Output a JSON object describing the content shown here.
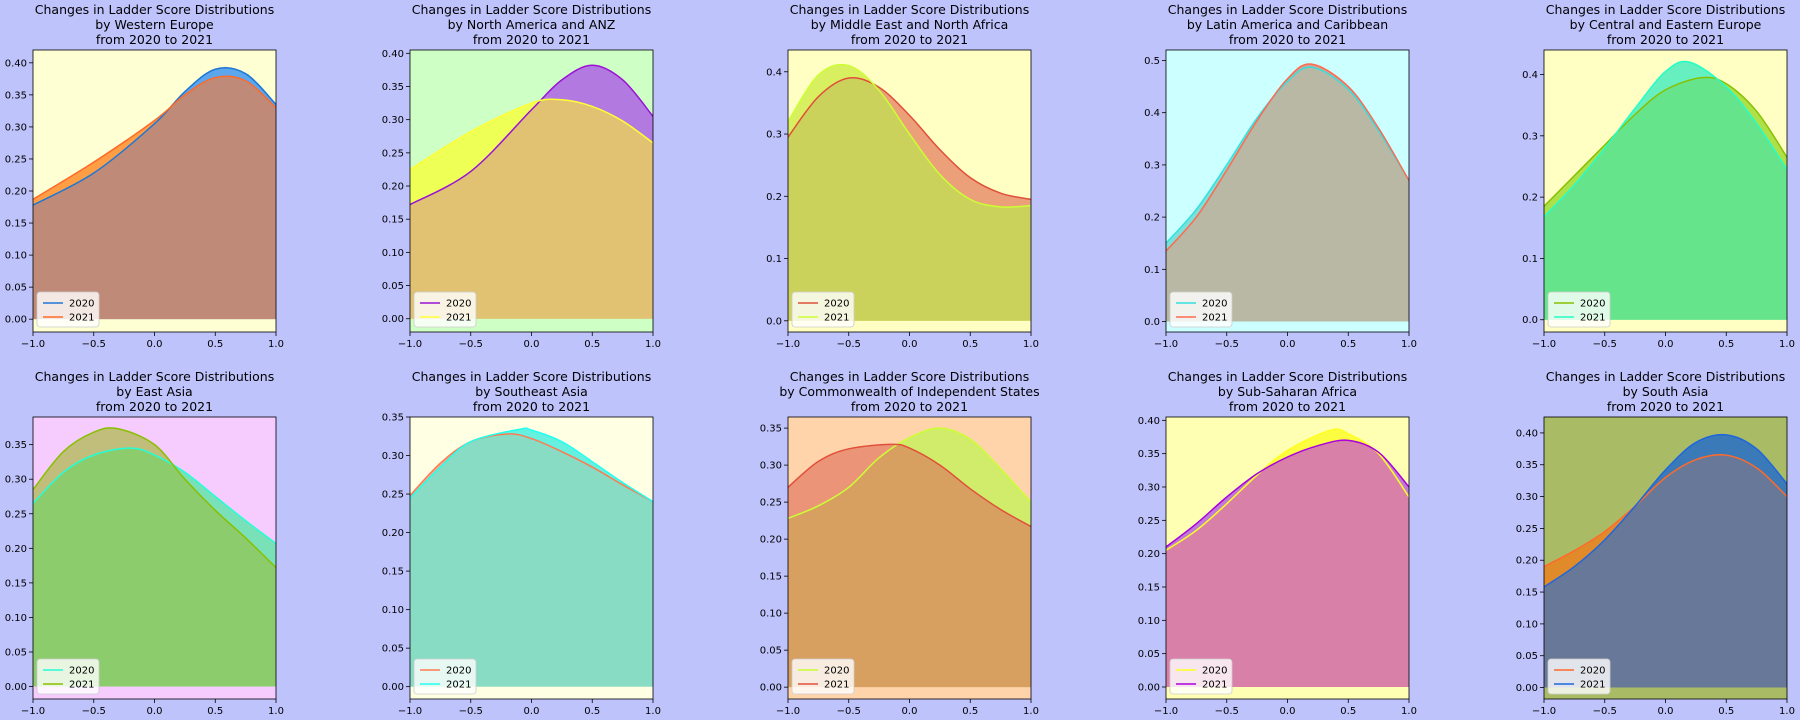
{
  "figure": {
    "background": "#bfc3fc"
  },
  "chart_data": [
    {
      "type": "area",
      "row": 0,
      "col": 0,
      "title": "Changes in Ladder Score Distributions\nby Western Europe\nfrom 2020 to 2021",
      "xlim": [
        -1,
        1
      ],
      "ylim": [
        -0.02,
        0.42
      ],
      "xticks": [
        "−1.0",
        "−0.5",
        "0.0",
        "0.5",
        "1.0"
      ],
      "yticks": [
        "0.00",
        "0.05",
        "0.10",
        "0.15",
        "0.20",
        "0.25",
        "0.30",
        "0.35",
        "0.40"
      ],
      "background": "#ffffd4",
      "legend_position": "lower-left",
      "series": [
        {
          "name": "2020",
          "color": "#1f77d4",
          "fill": "#5ba6ec",
          "x": [
            -1,
            -0.5,
            0,
            0.25,
            0.5,
            0.75,
            1
          ],
          "y": [
            0.178,
            0.228,
            0.305,
            0.355,
            0.39,
            0.383,
            0.335
          ]
        },
        {
          "name": "2021",
          "color": "#ff6a2a",
          "fill": "#ff9e45",
          "x": [
            -1,
            -0.5,
            0,
            0.25,
            0.5,
            0.75,
            1
          ],
          "y": [
            0.187,
            0.245,
            0.31,
            0.35,
            0.377,
            0.372,
            0.33
          ]
        }
      ],
      "overlap_fill": "#c08a78"
    },
    {
      "type": "area",
      "row": 0,
      "col": 1,
      "title": "Changes in Ladder Score Distributions\nby North America and ANZ\nfrom 2020 to 2021",
      "xlim": [
        -1,
        1
      ],
      "ylim": [
        -0.02,
        0.405
      ],
      "xticks": [
        "−1.0",
        "−0.5",
        "0.0",
        "0.5",
        "1.0"
      ],
      "yticks": [
        "0.00",
        "0.05",
        "0.10",
        "0.15",
        "0.20",
        "0.25",
        "0.30",
        "0.35",
        "0.40"
      ],
      "background": "#ceffc4",
      "legend_position": "lower-left",
      "series": [
        {
          "name": "2020",
          "color": "#9b12d6",
          "fill": "#b27ae0",
          "x": [
            -1,
            -0.5,
            0,
            0.25,
            0.5,
            0.75,
            1
          ],
          "y": [
            0.172,
            0.222,
            0.315,
            0.36,
            0.382,
            0.36,
            0.305
          ]
        },
        {
          "name": "2021",
          "color": "#ffff33",
          "fill": "#eeff55",
          "x": [
            -1,
            -0.5,
            0,
            0.25,
            0.5,
            0.75,
            1
          ],
          "y": [
            0.225,
            0.282,
            0.325,
            0.33,
            0.32,
            0.298,
            0.265
          ]
        }
      ],
      "overlap_fill": "#e0c272"
    },
    {
      "type": "area",
      "row": 0,
      "col": 2,
      "title": "Changes in Ladder Score Distributions\nby Middle East and North Africa\nfrom 2020 to 2021",
      "xlim": [
        -1,
        1
      ],
      "ylim": [
        -0.018,
        0.435
      ],
      "xticks": [
        "−1.0",
        "−0.5",
        "0.0",
        "0.5",
        "1.0"
      ],
      "yticks": [
        "0.0",
        "0.1",
        "0.2",
        "0.3",
        "0.4"
      ],
      "background": "#ffffc4",
      "legend_position": "lower-left",
      "series": [
        {
          "name": "2020",
          "color": "#e0503a",
          "fill": "#eba07a",
          "x": [
            -1,
            -0.75,
            -0.5,
            -0.25,
            0,
            0.25,
            0.5,
            0.75,
            1
          ],
          "y": [
            0.295,
            0.36,
            0.39,
            0.375,
            0.33,
            0.275,
            0.23,
            0.205,
            0.195
          ]
        },
        {
          "name": "2021",
          "color": "#ccff33",
          "fill": "#d8f060",
          "x": [
            -1,
            -0.75,
            -0.5,
            -0.25,
            0,
            0.25,
            0.5,
            0.75,
            1
          ],
          "y": [
            0.32,
            0.395,
            0.41,
            0.37,
            0.3,
            0.235,
            0.195,
            0.183,
            0.185
          ]
        }
      ],
      "overlap_fill": "#cbd25c"
    },
    {
      "type": "area",
      "row": 0,
      "col": 3,
      "title": "Changes in Ladder Score Distributions\nby Latin America and Caribbean\nfrom 2020 to 2021",
      "xlim": [
        -1,
        1
      ],
      "ylim": [
        -0.02,
        0.52
      ],
      "xticks": [
        "−1.0",
        "−0.5",
        "0.0",
        "0.5",
        "1.0"
      ],
      "yticks": [
        "0.0",
        "0.1",
        "0.2",
        "0.3",
        "0.4",
        "0.5"
      ],
      "background": "#ccffff",
      "legend_position": "lower-left",
      "series": [
        {
          "name": "2020",
          "color": "#33e0e0",
          "fill": "#7ae0d8",
          "x": [
            -1,
            -0.75,
            -0.5,
            -0.25,
            0,
            0.2,
            0.5,
            0.75,
            1
          ],
          "y": [
            0.15,
            0.215,
            0.3,
            0.39,
            0.46,
            0.487,
            0.445,
            0.365,
            0.27
          ]
        },
        {
          "name": "2021",
          "color": "#ff6a50",
          "fill": "#d8a090",
          "x": [
            -1,
            -0.75,
            -0.5,
            -0.25,
            0,
            0.2,
            0.5,
            0.75,
            1
          ],
          "y": [
            0.135,
            0.2,
            0.29,
            0.385,
            0.465,
            0.493,
            0.45,
            0.37,
            0.27
          ]
        }
      ],
      "overlap_fill": "#b8b8a4"
    },
    {
      "type": "area",
      "row": 0,
      "col": 4,
      "title": "Changes in Ladder Score Distributions\nby Central and Eastern Europe\nfrom 2020 to 2021",
      "xlim": [
        -1,
        1
      ],
      "ylim": [
        -0.02,
        0.44
      ],
      "xticks": [
        "−1.0",
        "−0.5",
        "0.0",
        "0.5",
        "1.0"
      ],
      "yticks": [
        "0.0",
        "0.1",
        "0.2",
        "0.3",
        "0.4"
      ],
      "background": "#ffffc4",
      "legend_position": "lower-left",
      "series": [
        {
          "name": "2020",
          "color": "#88c000",
          "fill": "#aee04a",
          "x": [
            -1,
            -0.75,
            -0.5,
            -0.25,
            0,
            0.3,
            0.5,
            0.75,
            1
          ],
          "y": [
            0.185,
            0.235,
            0.285,
            0.335,
            0.375,
            0.395,
            0.385,
            0.34,
            0.265
          ]
        },
        {
          "name": "2021",
          "color": "#22ffc8",
          "fill": "#66f0c0",
          "x": [
            -1,
            -0.75,
            -0.5,
            -0.25,
            0,
            0.2,
            0.5,
            0.75,
            1
          ],
          "y": [
            0.168,
            0.22,
            0.28,
            0.345,
            0.405,
            0.42,
            0.38,
            0.32,
            0.245
          ]
        }
      ],
      "overlap_fill": "#66e48c"
    },
    {
      "type": "area",
      "row": 1,
      "col": 0,
      "title": "Changes in Ladder Score Distributions\nby East Asia\nfrom 2020 to 2021",
      "xlim": [
        -1,
        1
      ],
      "ylim": [
        -0.018,
        0.39
      ],
      "xticks": [
        "−1.0",
        "−0.5",
        "0.0",
        "0.5",
        "1.0"
      ],
      "yticks": [
        "0.00",
        "0.05",
        "0.10",
        "0.15",
        "0.20",
        "0.25",
        "0.30",
        "0.35"
      ],
      "background": "#f6ccff",
      "legend_position": "lower-left",
      "series": [
        {
          "name": "2020",
          "color": "#22ffd8",
          "fill": "#7ae0b8",
          "x": [
            -1,
            -0.75,
            -0.5,
            -0.2,
            0,
            0.25,
            0.5,
            0.75,
            1
          ],
          "y": [
            0.265,
            0.31,
            0.335,
            0.345,
            0.335,
            0.31,
            0.275,
            0.24,
            0.207
          ]
        },
        {
          "name": "2021",
          "color": "#88c000",
          "fill": "#c0be7a",
          "x": [
            -1,
            -0.75,
            -0.5,
            -0.3,
            0,
            0.25,
            0.5,
            0.75,
            1
          ],
          "y": [
            0.285,
            0.34,
            0.368,
            0.373,
            0.35,
            0.3,
            0.255,
            0.215,
            0.172
          ]
        }
      ],
      "overlap_fill": "#8ccc6c"
    },
    {
      "type": "area",
      "row": 1,
      "col": 1,
      "title": "Changes in Ladder Score Distributions\nby Southeast Asia\nfrom 2020 to 2021",
      "xlim": [
        -1,
        1
      ],
      "ylim": [
        -0.016,
        0.35
      ],
      "xticks": [
        "−1.0",
        "−0.5",
        "0.0",
        "0.5",
        "1.0"
      ],
      "yticks": [
        "0.00",
        "0.05",
        "0.10",
        "0.15",
        "0.20",
        "0.25",
        "0.30",
        "0.35"
      ],
      "background": "#ffffe4",
      "legend_position": "lower-left",
      "series": [
        {
          "name": "2020",
          "color": "#ff7a50",
          "fill": "#f0b090",
          "x": [
            -1,
            -0.75,
            -0.5,
            -0.2,
            0,
            0.25,
            0.5,
            0.75,
            1
          ],
          "y": [
            0.248,
            0.29,
            0.318,
            0.328,
            0.322,
            0.305,
            0.285,
            0.262,
            0.24
          ]
        },
        {
          "name": "2021",
          "color": "#22ffee",
          "fill": "#66f0e0",
          "x": [
            -1,
            -0.75,
            -0.5,
            -0.1,
            0,
            0.25,
            0.5,
            0.75,
            1
          ],
          "y": [
            0.245,
            0.285,
            0.318,
            0.334,
            0.333,
            0.318,
            0.292,
            0.265,
            0.24
          ]
        }
      ],
      "overlap_fill": "#88dcc4"
    },
    {
      "type": "area",
      "row": 1,
      "col": 2,
      "title": "Changes in Ladder Score Distributions\nby Commonwealth of Independent States\nfrom 2020 to 2021",
      "xlim": [
        -1,
        1
      ],
      "ylim": [
        -0.016,
        0.365
      ],
      "xticks": [
        "−1.0",
        "−0.5",
        "0.0",
        "0.5",
        "1.0"
      ],
      "yticks": [
        "0.00",
        "0.05",
        "0.10",
        "0.15",
        "0.20",
        "0.25",
        "0.30",
        "0.35"
      ],
      "background": "#ffd4aa",
      "legend_position": "lower-left",
      "series": [
        {
          "name": "2020",
          "color": "#ccff33",
          "fill": "#d0ec6a",
          "x": [
            -1,
            -0.75,
            -0.5,
            -0.25,
            0,
            0.25,
            0.5,
            0.75,
            1
          ],
          "y": [
            0.228,
            0.245,
            0.27,
            0.31,
            0.337,
            0.35,
            0.335,
            0.295,
            0.25
          ]
        },
        {
          "name": "2021",
          "color": "#e0503a",
          "fill": "#eb9478",
          "x": [
            -1,
            -0.75,
            -0.5,
            -0.15,
            0,
            0.25,
            0.5,
            0.75,
            1
          ],
          "y": [
            0.27,
            0.305,
            0.322,
            0.328,
            0.323,
            0.3,
            0.268,
            0.24,
            0.217
          ]
        }
      ],
      "overlap_fill": "#d8a060"
    },
    {
      "type": "area",
      "row": 1,
      "col": 3,
      "title": "Changes in Ladder Score Distributions\nby Sub-Saharan Africa\nfrom 2020 to 2021",
      "xlim": [
        -1,
        1
      ],
      "ylim": [
        -0.018,
        0.405
      ],
      "xticks": [
        "−1.0",
        "−0.5",
        "0.0",
        "0.5",
        "1.0"
      ],
      "yticks": [
        "0.00",
        "0.05",
        "0.10",
        "0.15",
        "0.20",
        "0.25",
        "0.30",
        "0.35",
        "0.40"
      ],
      "background": "#ffffb4",
      "legend_position": "lower-left",
      "series": [
        {
          "name": "2020",
          "color": "#ffff22",
          "fill": "#fcfc40",
          "x": [
            -1,
            -0.75,
            -0.5,
            -0.25,
            0,
            0.35,
            0.5,
            0.75,
            1
          ],
          "y": [
            0.205,
            0.235,
            0.275,
            0.318,
            0.355,
            0.385,
            0.38,
            0.35,
            0.285
          ]
        },
        {
          "name": "2021",
          "color": "#aa00dd",
          "fill": "#c07ad8",
          "x": [
            -1,
            -0.75,
            -0.5,
            -0.25,
            0,
            0.25,
            0.5,
            0.75,
            1
          ],
          "y": [
            0.21,
            0.245,
            0.285,
            0.32,
            0.345,
            0.362,
            0.37,
            0.352,
            0.3
          ]
        }
      ],
      "overlap_fill": "#d880a8"
    },
    {
      "type": "area",
      "row": 1,
      "col": 4,
      "title": "Changes in Ladder Score Distributions\nby South Asia\nfrom 2020 to 2021",
      "xlim": [
        -1,
        1
      ],
      "ylim": [
        -0.018,
        0.425
      ],
      "xticks": [
        "−1.0",
        "−0.5",
        "0.0",
        "0.5",
        "1.0"
      ],
      "yticks": [
        "0.00",
        "0.05",
        "0.10",
        "0.15",
        "0.20",
        "0.25",
        "0.30",
        "0.35",
        "0.40"
      ],
      "background": "#aabb66",
      "legend_position": "lower-left",
      "series": [
        {
          "name": "2020",
          "color": "#ff6a2a",
          "fill": "#e08a2a",
          "x": [
            -1,
            -0.75,
            -0.5,
            -0.25,
            0,
            0.25,
            0.5,
            0.75,
            1
          ],
          "y": [
            0.19,
            0.215,
            0.245,
            0.285,
            0.33,
            0.358,
            0.365,
            0.345,
            0.3
          ]
        },
        {
          "name": "2021",
          "color": "#1f66dd",
          "fill": "#3a7ab8",
          "x": [
            -1,
            -0.75,
            -0.5,
            -0.25,
            0,
            0.25,
            0.5,
            0.75,
            1
          ],
          "y": [
            0.158,
            0.19,
            0.232,
            0.285,
            0.342,
            0.385,
            0.397,
            0.375,
            0.32
          ]
        }
      ],
      "overlap_fill": "#687898"
    }
  ]
}
